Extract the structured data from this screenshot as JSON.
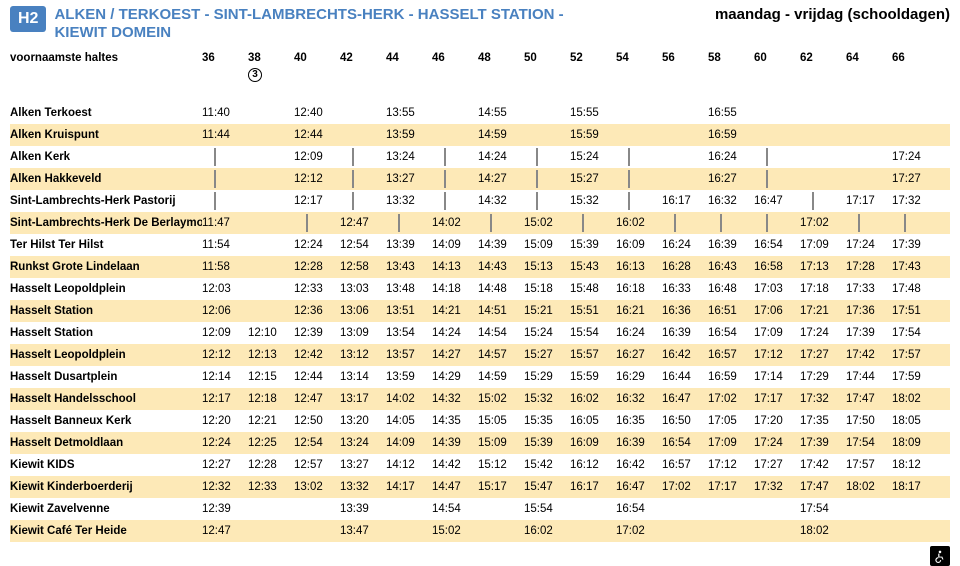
{
  "route_badge": "H2",
  "route_title_line1": "ALKEN / TERKOEST - SINT-LAMBRECHTS-HERK - HASSELT STATION -",
  "route_title_line2": "KIEWIT DOMEIN",
  "schedule_label": "maandag - vrijdag (schooldagen)",
  "header_label": "voornaamste haltes",
  "circled_note": "3",
  "columns": [
    "36",
    "38",
    "40",
    "42",
    "44",
    "46",
    "48",
    "50",
    "52",
    "54",
    "56",
    "58",
    "60",
    "62",
    "64",
    "66"
  ],
  "colors": {
    "badge_bg": "#4981c0",
    "alt_row_bg": "#fde9b7"
  },
  "stops": [
    {
      "name": "Alken Terkoest",
      "times": [
        "11:40",
        "",
        "12:40",
        "",
        "13:55",
        "",
        "14:55",
        "",
        "15:55",
        "",
        "",
        "16:55",
        "",
        "",
        "",
        ""
      ]
    },
    {
      "name": "Alken Kruispunt",
      "times": [
        "11:44",
        "",
        "12:44",
        "",
        "13:59",
        "",
        "14:59",
        "",
        "15:59",
        "",
        "",
        "16:59",
        "",
        "",
        "",
        ""
      ]
    },
    {
      "name": "Alken Kerk",
      "times": [
        "|",
        "",
        "12:09",
        "|",
        "13:24",
        "|",
        "14:24",
        "|",
        "15:24",
        "|",
        "",
        "16:24",
        "|",
        "",
        "",
        "17:24"
      ]
    },
    {
      "name": "Alken Hakkeveld",
      "times": [
        "|",
        "",
        "12:12",
        "|",
        "13:27",
        "|",
        "14:27",
        "|",
        "15:27",
        "|",
        "",
        "16:27",
        "|",
        "",
        "",
        "17:27"
      ]
    },
    {
      "name": "Sint-Lambrechts-Herk Pastorij",
      "times": [
        "|",
        "",
        "12:17",
        "|",
        "13:32",
        "|",
        "14:32",
        "|",
        "15:32",
        "|",
        "16:17",
        "16:32",
        "16:47",
        "|",
        "17:17",
        "17:32"
      ]
    },
    {
      "name": "Sint-Lambrechts-Herk De Berlaymontstr.",
      "times": [
        "11:47",
        "",
        "|",
        "12:47",
        "|",
        "14:02",
        "|",
        "15:02",
        "|",
        "16:02",
        "|",
        "|",
        "|",
        "17:02",
        "|",
        "|"
      ]
    },
    {
      "name": "Ter Hilst Ter Hilst",
      "times": [
        "11:54",
        "",
        "12:24",
        "12:54",
        "13:39",
        "14:09",
        "14:39",
        "15:09",
        "15:39",
        "16:09",
        "16:24",
        "16:39",
        "16:54",
        "17:09",
        "17:24",
        "17:39"
      ]
    },
    {
      "name": "Runkst Grote Lindelaan",
      "times": [
        "11:58",
        "",
        "12:28",
        "12:58",
        "13:43",
        "14:13",
        "14:43",
        "15:13",
        "15:43",
        "16:13",
        "16:28",
        "16:43",
        "16:58",
        "17:13",
        "17:28",
        "17:43"
      ]
    },
    {
      "name": "Hasselt Leopoldplein",
      "times": [
        "12:03",
        "",
        "12:33",
        "13:03",
        "13:48",
        "14:18",
        "14:48",
        "15:18",
        "15:48",
        "16:18",
        "16:33",
        "16:48",
        "17:03",
        "17:18",
        "17:33",
        "17:48"
      ]
    },
    {
      "name": "Hasselt Station",
      "times": [
        "12:06",
        "",
        "12:36",
        "13:06",
        "13:51",
        "14:21",
        "14:51",
        "15:21",
        "15:51",
        "16:21",
        "16:36",
        "16:51",
        "17:06",
        "17:21",
        "17:36",
        "17:51"
      ]
    },
    {
      "name": "Hasselt Station",
      "times": [
        "12:09",
        "12:10",
        "12:39",
        "13:09",
        "13:54",
        "14:24",
        "14:54",
        "15:24",
        "15:54",
        "16:24",
        "16:39",
        "16:54",
        "17:09",
        "17:24",
        "17:39",
        "17:54"
      ]
    },
    {
      "name": "Hasselt Leopoldplein",
      "times": [
        "12:12",
        "12:13",
        "12:42",
        "13:12",
        "13:57",
        "14:27",
        "14:57",
        "15:27",
        "15:57",
        "16:27",
        "16:42",
        "16:57",
        "17:12",
        "17:27",
        "17:42",
        "17:57"
      ]
    },
    {
      "name": "Hasselt Dusartplein",
      "times": [
        "12:14",
        "12:15",
        "12:44",
        "13:14",
        "13:59",
        "14:29",
        "14:59",
        "15:29",
        "15:59",
        "16:29",
        "16:44",
        "16:59",
        "17:14",
        "17:29",
        "17:44",
        "17:59"
      ]
    },
    {
      "name": "Hasselt Handelsschool",
      "times": [
        "12:17",
        "12:18",
        "12:47",
        "13:17",
        "14:02",
        "14:32",
        "15:02",
        "15:32",
        "16:02",
        "16:32",
        "16:47",
        "17:02",
        "17:17",
        "17:32",
        "17:47",
        "18:02"
      ]
    },
    {
      "name": "Hasselt Banneux Kerk",
      "times": [
        "12:20",
        "12:21",
        "12:50",
        "13:20",
        "14:05",
        "14:35",
        "15:05",
        "15:35",
        "16:05",
        "16:35",
        "16:50",
        "17:05",
        "17:20",
        "17:35",
        "17:50",
        "18:05"
      ]
    },
    {
      "name": "Hasselt Detmoldlaan",
      "times": [
        "12:24",
        "12:25",
        "12:54",
        "13:24",
        "14:09",
        "14:39",
        "15:09",
        "15:39",
        "16:09",
        "16:39",
        "16:54",
        "17:09",
        "17:24",
        "17:39",
        "17:54",
        "18:09"
      ]
    },
    {
      "name": "Kiewit KIDS",
      "times": [
        "12:27",
        "12:28",
        "12:57",
        "13:27",
        "14:12",
        "14:42",
        "15:12",
        "15:42",
        "16:12",
        "16:42",
        "16:57",
        "17:12",
        "17:27",
        "17:42",
        "17:57",
        "18:12"
      ]
    },
    {
      "name": "Kiewit Kinderboerderij",
      "times": [
        "12:32",
        "12:33",
        "13:02",
        "13:32",
        "14:17",
        "14:47",
        "15:17",
        "15:47",
        "16:17",
        "16:47",
        "17:02",
        "17:17",
        "17:32",
        "17:47",
        "18:02",
        "18:17"
      ]
    },
    {
      "name": "Kiewit Zavelvenne",
      "times": [
        "12:39",
        "",
        "",
        "13:39",
        "",
        "14:54",
        "",
        "15:54",
        "",
        "16:54",
        "",
        "",
        "",
        "17:54",
        "",
        ""
      ]
    },
    {
      "name": "Kiewit Café Ter Heide",
      "times": [
        "12:47",
        "",
        "",
        "13:47",
        "",
        "15:02",
        "",
        "16:02",
        "",
        "17:02",
        "",
        "",
        "",
        "18:02",
        "",
        ""
      ]
    }
  ]
}
